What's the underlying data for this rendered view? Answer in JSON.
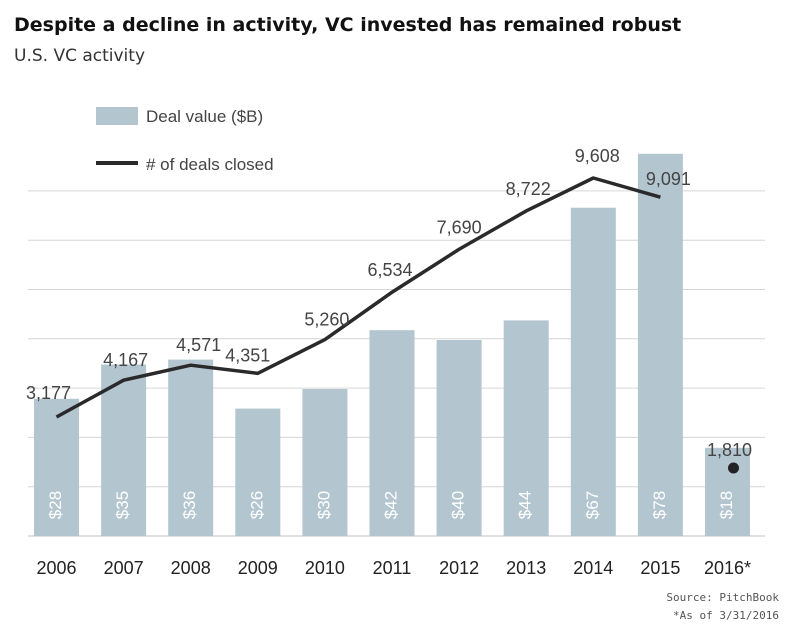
{
  "header": {
    "title": "Despite a decline in activity, VC invested has remained robust",
    "subtitle": "U.S. VC activity"
  },
  "footer": {
    "source": "Source: PitchBook",
    "note": "*As of 3/31/2016"
  },
  "colors": {
    "bar": "#b3c6d0",
    "line": "#2a2a2a",
    "grid": "#d6d6d6",
    "text": "#444444",
    "bar_label": "#ffffff"
  },
  "chart_data": {
    "type": "bar",
    "categories": [
      "2006",
      "2007",
      "2008",
      "2009",
      "2010",
      "2011",
      "2012",
      "2013",
      "2014",
      "2015",
      "2016*"
    ],
    "series": [
      {
        "name": "Deal value ($B)",
        "type": "bar",
        "values": [
          28,
          35,
          36,
          26,
          30,
          42,
          40,
          44,
          67,
          78,
          18
        ],
        "labels": [
          "$28",
          "$35",
          "$36",
          "$26",
          "$30",
          "$42",
          "$40",
          "$44",
          "$67",
          "$78",
          "$18"
        ]
      },
      {
        "name": "# of deals closed",
        "type": "line",
        "values": [
          3177,
          4167,
          4571,
          4351,
          5260,
          6534,
          7690,
          8722,
          9608,
          9091,
          1810
        ],
        "labels": [
          "3,177",
          "4,167",
          "4,571",
          "4,351",
          "5,260",
          "6,534",
          "7,690",
          "8,722",
          "9,608",
          "9,091",
          "1,810"
        ]
      }
    ],
    "legend": {
      "position": "top-left"
    },
    "grid": true
  }
}
